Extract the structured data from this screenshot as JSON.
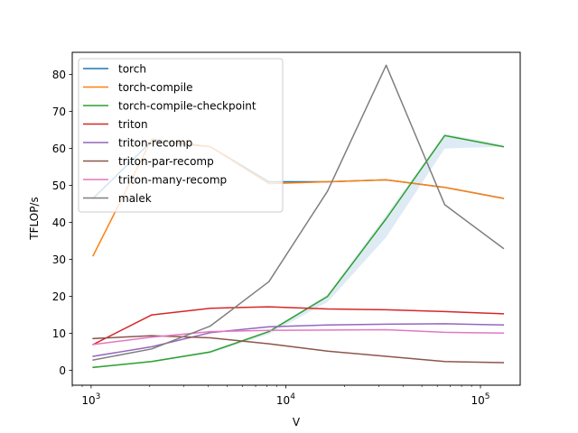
{
  "chart_data": {
    "type": "line",
    "xlabel": "V",
    "ylabel": "TFLOP/s",
    "xscale": "log",
    "xlim": [
      800,
      160000
    ],
    "ylim": [
      -4,
      86
    ],
    "x_ticks": [
      {
        "value": 1000,
        "base": "10",
        "exp": "3"
      },
      {
        "value": 10000,
        "base": "10",
        "exp": "4"
      },
      {
        "value": 100000,
        "base": "10",
        "exp": "5"
      }
    ],
    "y_ticks": [
      0,
      10,
      20,
      30,
      40,
      50,
      60,
      70,
      80
    ],
    "legend_position": "upper-left",
    "grid": false,
    "x": [
      1024,
      2048,
      4096,
      8192,
      16384,
      32768,
      65536,
      131072
    ],
    "series": [
      {
        "name": "torch",
        "color": "#1f77b4",
        "values": [
          46.5,
          62.0,
          60.5,
          51.0,
          51.0,
          51.5,
          49.5,
          46.5
        ]
      },
      {
        "name": "torch-compile",
        "color": "#ff7f0e",
        "values": [
          31.0,
          62.5,
          60.5,
          50.5,
          51.0,
          51.5,
          49.5,
          46.5
        ]
      },
      {
        "name": "torch-compile-checkpoint",
        "color": "#2ca02c",
        "values": [
          0.8,
          2.4,
          5.0,
          10.5,
          20.0,
          41.0,
          63.5,
          60.5
        ]
      },
      {
        "name": "triton",
        "color": "#d62728",
        "values": [
          7.0,
          15.0,
          16.8,
          17.2,
          16.6,
          16.4,
          15.9,
          15.3
        ]
      },
      {
        "name": "triton-recomp",
        "color": "#9467bd",
        "values": [
          3.8,
          6.4,
          10.2,
          11.8,
          12.3,
          12.5,
          12.6,
          12.3
        ]
      },
      {
        "name": "triton-par-recomp",
        "color": "#8c564b",
        "values": [
          8.6,
          9.4,
          8.8,
          7.2,
          5.2,
          3.8,
          2.4,
          2.1
        ]
      },
      {
        "name": "triton-many-recomp",
        "color": "#e377c2",
        "values": [
          7.0,
          9.0,
          10.5,
          10.8,
          10.9,
          11.0,
          10.3,
          10.1
        ]
      },
      {
        "name": "malek",
        "color": "#7f7f7f",
        "values": [
          2.8,
          5.8,
          12.0,
          24.0,
          48.5,
          82.5,
          44.8,
          33.0
        ]
      }
    ],
    "band": {
      "series": "torch-compile-checkpoint",
      "color": "#1f77b4",
      "opacity": 0.15,
      "lower": [
        0.6,
        2.2,
        4.6,
        9.8,
        18.5,
        36.0,
        60.0,
        60.5
      ],
      "upper": [
        0.9,
        2.5,
        5.2,
        10.8,
        20.5,
        42.0,
        64.0,
        61.0
      ]
    }
  }
}
